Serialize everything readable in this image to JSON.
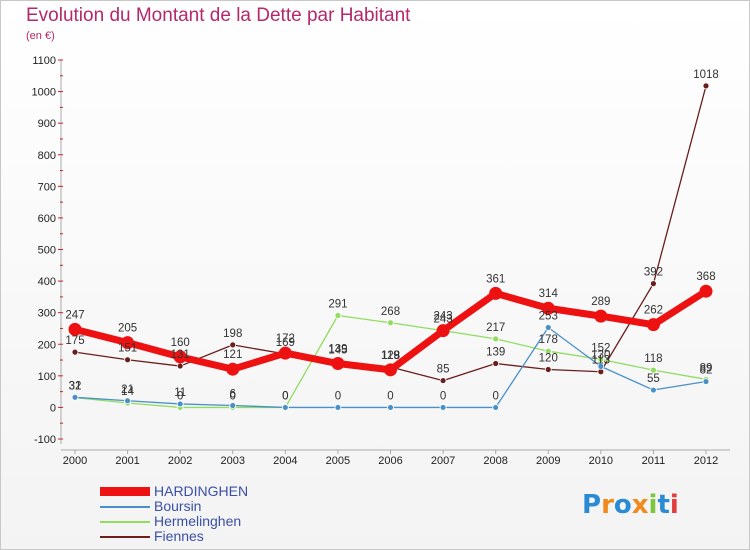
{
  "title": "Evolution du Montant de la Dette par Habitant",
  "unit": "(en €)",
  "logo": "Proxiti",
  "chart_data": {
    "type": "line",
    "x": [
      "2000",
      "2001",
      "2002",
      "2003",
      "2004",
      "2005",
      "2006",
      "2007",
      "2008",
      "2009",
      "2010",
      "2011",
      "2012"
    ],
    "ylim": [
      -100,
      1100
    ],
    "yticks": [
      -100,
      0,
      100,
      200,
      300,
      400,
      500,
      600,
      700,
      800,
      900,
      1000,
      1100
    ],
    "grid": false,
    "legend_position": "bottom-left",
    "series": [
      {
        "name": "HARDINGHEN",
        "color": "#ee1111",
        "values": [
          247,
          205,
          160,
          121,
          172,
          139,
          119,
          243,
          361,
          314,
          289,
          262,
          368
        ]
      },
      {
        "name": "Boursin",
        "color": "#4a90c8",
        "values": [
          32,
          21,
          11,
          6,
          0,
          0,
          0,
          0,
          0,
          253,
          130,
          55,
          82
        ]
      },
      {
        "name": "Hermelinghen",
        "color": "#90dd60",
        "values": [
          31,
          14,
          0,
          0,
          0,
          291,
          268,
          243,
          217,
          178,
          152,
          118,
          89
        ]
      },
      {
        "name": "Fiennes",
        "color": "#6a1e1e",
        "values": [
          175,
          151,
          131,
          198,
          169,
          145,
          128,
          85,
          139,
          120,
          113,
          392,
          1018
        ]
      }
    ]
  }
}
